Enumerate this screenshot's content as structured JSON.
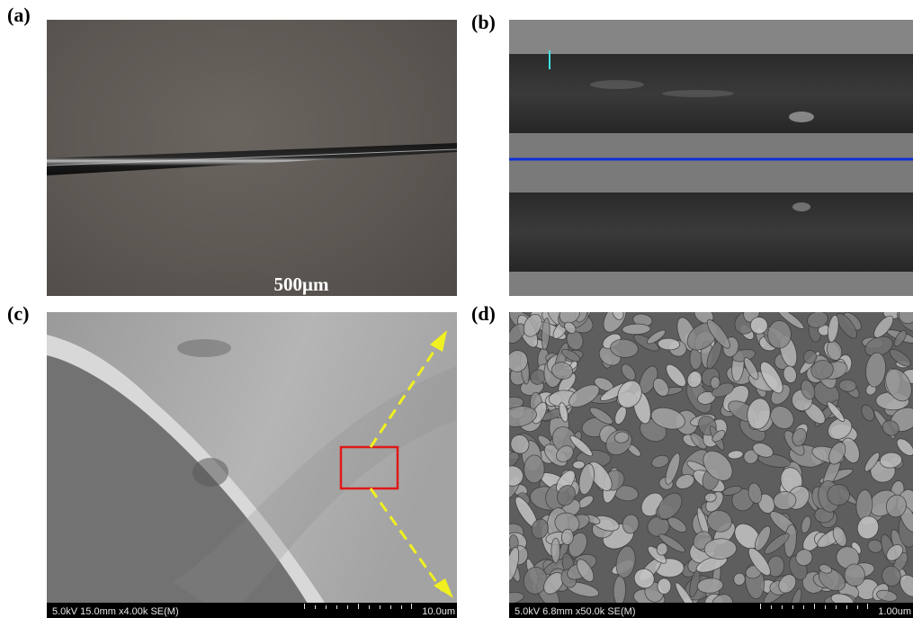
{
  "panels": {
    "a": {
      "label": "(a)",
      "scale_bar": "500μm"
    },
    "b": {
      "label": "(b)"
    },
    "c": {
      "label": "(c)",
      "info": "5.0kV 15.0mm x4.00k SE(M)",
      "scale": "10.0um"
    },
    "d": {
      "label": "(d)",
      "info": "5.0kV 6.8mm x50.0k SE(M)",
      "scale": "1.00um"
    }
  },
  "colors": {
    "fiber_line": "#0a0a0a",
    "profile_line": "#1030d8",
    "marker": "#40e0e0",
    "roi_box": "#e01818",
    "arrows": "#f0f020"
  }
}
